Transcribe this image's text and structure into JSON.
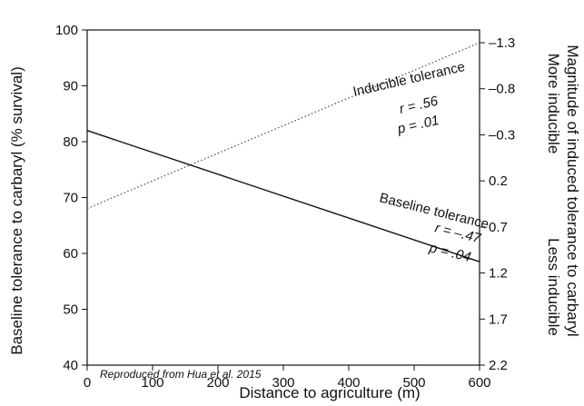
{
  "chart_data": {
    "type": "line",
    "xlabel": "Distance to agriculture (m)",
    "ylabel": "Baseline tolerance to carbaryl (% survival)",
    "ylabel_right": "Magnitude of induced tolerance to carbaryl",
    "right_axis_annotations": [
      "More inducible",
      "Less inducible"
    ],
    "xlim": [
      0,
      600
    ],
    "ylim": [
      40,
      100
    ],
    "x_ticks": [
      0,
      100,
      200,
      300,
      400,
      500,
      600
    ],
    "y_ticks": [
      40,
      50,
      60,
      70,
      80,
      90,
      100
    ],
    "y2_ticks": [
      -1.3,
      -0.8,
      -0.3,
      0.2,
      0.7,
      1.2,
      1.7,
      2.2
    ],
    "y2_tick_labels": [
      "–1.3",
      "–0.8",
      "–0.3",
      "0.2",
      "0.7",
      "1.2",
      "1.7",
      "2.2"
    ],
    "y2_inverted": true,
    "y2lim": [
      -1.6,
      2.2
    ],
    "series": [
      {
        "name": "Baseline tolerance",
        "axis": "left",
        "style": "solid",
        "color": "#111111",
        "x": [
          0,
          600
        ],
        "y": [
          82,
          58.5
        ],
        "stats": {
          "r": "r = –.47",
          "p": "p = .04"
        }
      },
      {
        "name": "Inducible tolerance",
        "axis": "right",
        "style": "dotted",
        "color": "#555555",
        "x": [
          0,
          600
        ],
        "y": [
          0.5,
          -1.3
        ],
        "stats": {
          "r": "r = .56",
          "p": "p = .01"
        }
      }
    ],
    "credit": "Reproduced from Hua et al. 2015",
    "grid": false
  }
}
